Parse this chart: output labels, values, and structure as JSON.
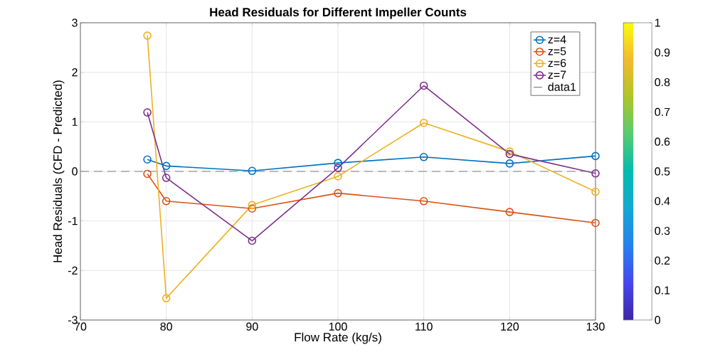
{
  "chart_data": {
    "type": "line",
    "title": "Head Residuals for Different Impeller Counts",
    "xlabel": "Flow Rate (kg/s)",
    "ylabel": "Head Residuals (CFD - Predicted)",
    "x": [
      77.8,
      80,
      90,
      100,
      110,
      120,
      130
    ],
    "series": [
      {
        "name": "z=4",
        "color": "#0072bd",
        "values": [
          0.24,
          0.11,
          0.01,
          0.17,
          0.29,
          0.16,
          0.31
        ]
      },
      {
        "name": "z=5",
        "color": "#d95319",
        "values": [
          -0.05,
          -0.6,
          -0.75,
          -0.44,
          -0.6,
          -0.82,
          -1.04
        ]
      },
      {
        "name": "z=6",
        "color": "#edb120",
        "values": [
          2.74,
          -2.56,
          -0.68,
          -0.1,
          0.98,
          0.4,
          -0.41
        ]
      },
      {
        "name": "z=7",
        "color": "#7e2f8e",
        "values": [
          1.19,
          -0.13,
          -1.4,
          0.07,
          1.73,
          0.35,
          -0.04
        ]
      }
    ],
    "ref_lines": [
      {
        "axis": "y",
        "value": 0,
        "label": "data1",
        "color": "#808080",
        "line_style": "dashed"
      }
    ],
    "xlim": [
      70,
      130
    ],
    "xticks": [
      70,
      80,
      90,
      100,
      110,
      120,
      130
    ],
    "ylim": [
      -3,
      3
    ],
    "yticks": [
      -3,
      -2,
      -1,
      0,
      1,
      2,
      3
    ],
    "clim": [
      0,
      1
    ],
    "cticks": [
      0,
      0.1,
      0.2,
      0.3,
      0.4,
      0.5,
      0.6,
      0.7,
      0.8,
      0.9,
      1
    ],
    "grid": true,
    "legend": "top right",
    "marker": "circle",
    "line_style": "solid"
  }
}
